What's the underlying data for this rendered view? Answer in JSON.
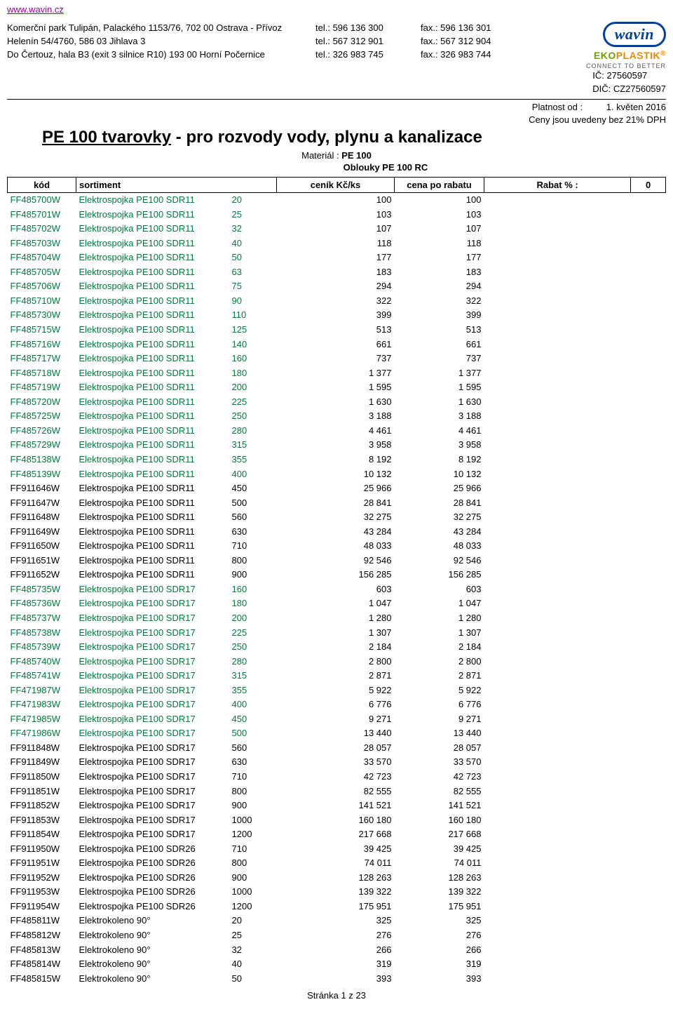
{
  "site_url": "www.wavin.cz",
  "addresses": [
    "Komerční park Tulipán, Palackého 1153/76, 702 00 Ostrava - Přívoz",
    "Helenín 54/4760, 586 03 Jihlava 3",
    "Do Čertouz, hala B3 (exit 3 silnice R10) 193 00  Horní Počernice"
  ],
  "tel_lines": [
    "tel.: 596 136 300",
    "tel.: 567 312 901",
    "tel.: 326 983 745"
  ],
  "fax_lines": [
    "fax.: 596 136 301",
    "fax.: 567 312 904",
    "fax.: 326 983 744"
  ],
  "ic": "IČ: 27560597",
  "dic": "DIČ: CZ27560597",
  "platnost_label": "Platnost od :",
  "platnost_value": "1. květen 2016",
  "vat_note": "Ceny jsou uvedeny bez 21% DPH",
  "logo_text": "wavin",
  "eko_text_1": "EKO",
  "eko_text_2": "PLASTIK",
  "eko_reg": "®",
  "ctb_text": "CONNECT TO BETTER",
  "title_underlined": "PE 100 tvarovky",
  "title_rest": " - pro rozvody vody, plynu a kanalizace",
  "material_label": "Materiál : ",
  "material_value": "PE 100",
  "section": "Oblouky PE 100 RC",
  "headers": {
    "kod": "kód",
    "sortiment": "sortiment",
    "cenik": "ceník Kč/ks",
    "rabat_price": "cena po rabatu",
    "rabat_label": "Rabat % :",
    "rabat_value": "0"
  },
  "rows": [
    {
      "kod": "FF485700W",
      "sort": "Elektrospojka PE100 SDR11",
      "dim": "20",
      "p1": "100",
      "p2": "100",
      "c": "g"
    },
    {
      "kod": "FF485701W",
      "sort": "Elektrospojka PE100 SDR11",
      "dim": "25",
      "p1": "103",
      "p2": "103",
      "c": "g"
    },
    {
      "kod": "FF485702W",
      "sort": "Elektrospojka PE100 SDR11",
      "dim": "32",
      "p1": "107",
      "p2": "107",
      "c": "g"
    },
    {
      "kod": "FF485703W",
      "sort": "Elektrospojka PE100 SDR11",
      "dim": "40",
      "p1": "118",
      "p2": "118",
      "c": "g"
    },
    {
      "kod": "FF485704W",
      "sort": "Elektrospojka PE100 SDR11",
      "dim": "50",
      "p1": "177",
      "p2": "177",
      "c": "g"
    },
    {
      "kod": "FF485705W",
      "sort": "Elektrospojka PE100 SDR11",
      "dim": "63",
      "p1": "183",
      "p2": "183",
      "c": "g"
    },
    {
      "kod": "FF485706W",
      "sort": "Elektrospojka PE100 SDR11",
      "dim": "75",
      "p1": "294",
      "p2": "294",
      "c": "g"
    },
    {
      "kod": "FF485710W",
      "sort": "Elektrospojka PE100 SDR11",
      "dim": "90",
      "p1": "322",
      "p2": "322",
      "c": "g"
    },
    {
      "kod": "FF485730W",
      "sort": "Elektrospojka PE100 SDR11",
      "dim": "110",
      "p1": "399",
      "p2": "399",
      "c": "g"
    },
    {
      "kod": "FF485715W",
      "sort": "Elektrospojka PE100 SDR11",
      "dim": "125",
      "p1": "513",
      "p2": "513",
      "c": "g"
    },
    {
      "kod": "FF485716W",
      "sort": "Elektrospojka PE100 SDR11",
      "dim": "140",
      "p1": "661",
      "p2": "661",
      "c": "g"
    },
    {
      "kod": "FF485717W",
      "sort": "Elektrospojka PE100 SDR11",
      "dim": "160",
      "p1": "737",
      "p2": "737",
      "c": "g"
    },
    {
      "kod": "FF485718W",
      "sort": "Elektrospojka PE100 SDR11",
      "dim": "180",
      "p1": "1 377",
      "p2": "1 377",
      "c": "g"
    },
    {
      "kod": "FF485719W",
      "sort": "Elektrospojka PE100 SDR11",
      "dim": "200",
      "p1": "1 595",
      "p2": "1 595",
      "c": "g"
    },
    {
      "kod": "FF485720W",
      "sort": "Elektrospojka PE100 SDR11",
      "dim": "225",
      "p1": "1 630",
      "p2": "1 630",
      "c": "g"
    },
    {
      "kod": "FF485725W",
      "sort": "Elektrospojka PE100 SDR11",
      "dim": "250",
      "p1": "3 188",
      "p2": "3 188",
      "c": "g"
    },
    {
      "kod": "FF485726W",
      "sort": "Elektrospojka PE100 SDR11",
      "dim": "280",
      "p1": "4 461",
      "p2": "4 461",
      "c": "g"
    },
    {
      "kod": "FF485729W",
      "sort": "Elektrospojka PE100 SDR11",
      "dim": "315",
      "p1": "3 958",
      "p2": "3 958",
      "c": "g"
    },
    {
      "kod": "FF485138W",
      "sort": "Elektrospojka PE100 SDR11",
      "dim": "355",
      "p1": "8 192",
      "p2": "8 192",
      "c": "g"
    },
    {
      "kod": "FF485139W",
      "sort": "Elektrospojka PE100 SDR11",
      "dim": "400",
      "p1": "10 132",
      "p2": "10 132",
      "c": "g"
    },
    {
      "kod": "FF911646W",
      "sort": "Elektrospojka PE100 SDR11",
      "dim": "450",
      "p1": "25 966",
      "p2": "25 966",
      "c": "b"
    },
    {
      "kod": "FF911647W",
      "sort": "Elektrospojka PE100 SDR11",
      "dim": "500",
      "p1": "28 841",
      "p2": "28 841",
      "c": "b"
    },
    {
      "kod": "FF911648W",
      "sort": "Elektrospojka PE100 SDR11",
      "dim": "560",
      "p1": "32 275",
      "p2": "32 275",
      "c": "b"
    },
    {
      "kod": "FF911649W",
      "sort": "Elektrospojka PE100 SDR11",
      "dim": "630",
      "p1": "43 284",
      "p2": "43 284",
      "c": "b"
    },
    {
      "kod": "FF911650W",
      "sort": "Elektrospojka PE100 SDR11",
      "dim": "710",
      "p1": "48 033",
      "p2": "48 033",
      "c": "b"
    },
    {
      "kod": "FF911651W",
      "sort": "Elektrospojka PE100 SDR11",
      "dim": "800",
      "p1": "92 546",
      "p2": "92 546",
      "c": "b"
    },
    {
      "kod": "FF911652W",
      "sort": "Elektrospojka PE100 SDR11",
      "dim": "900",
      "p1": "156 285",
      "p2": "156 285",
      "c": "b"
    },
    {
      "kod": "FF485735W",
      "sort": "Elektrospojka PE100 SDR17",
      "dim": "160",
      "p1": "603",
      "p2": "603",
      "c": "g"
    },
    {
      "kod": "FF485736W",
      "sort": "Elektrospojka PE100 SDR17",
      "dim": "180",
      "p1": "1 047",
      "p2": "1 047",
      "c": "g"
    },
    {
      "kod": "FF485737W",
      "sort": "Elektrospojka PE100 SDR17",
      "dim": "200",
      "p1": "1 280",
      "p2": "1 280",
      "c": "g"
    },
    {
      "kod": "FF485738W",
      "sort": "Elektrospojka PE100 SDR17",
      "dim": "225",
      "p1": "1 307",
      "p2": "1 307",
      "c": "g"
    },
    {
      "kod": "FF485739W",
      "sort": "Elektrospojka PE100 SDR17",
      "dim": "250",
      "p1": "2 184",
      "p2": "2 184",
      "c": "g"
    },
    {
      "kod": "FF485740W",
      "sort": "Elektrospojka PE100 SDR17",
      "dim": "280",
      "p1": "2 800",
      "p2": "2 800",
      "c": "g"
    },
    {
      "kod": "FF485741W",
      "sort": "Elektrospojka PE100 SDR17",
      "dim": "315",
      "p1": "2 871",
      "p2": "2 871",
      "c": "g"
    },
    {
      "kod": "FF471987W",
      "sort": "Elektrospojka PE100 SDR17",
      "dim": "355",
      "p1": "5 922",
      "p2": "5 922",
      "c": "g"
    },
    {
      "kod": "FF471983W",
      "sort": "Elektrospojka PE100 SDR17",
      "dim": "400",
      "p1": "6 776",
      "p2": "6 776",
      "c": "g"
    },
    {
      "kod": "FF471985W",
      "sort": "Elektrospojka PE100 SDR17",
      "dim": "450",
      "p1": "9 271",
      "p2": "9 271",
      "c": "g"
    },
    {
      "kod": "FF471986W",
      "sort": "Elektrospojka PE100 SDR17",
      "dim": "500",
      "p1": "13 440",
      "p2": "13 440",
      "c": "g"
    },
    {
      "kod": "FF911848W",
      "sort": "Elektrospojka PE100 SDR17",
      "dim": "560",
      "p1": "28 057",
      "p2": "28 057",
      "c": "b"
    },
    {
      "kod": "FF911849W",
      "sort": "Elektrospojka PE100 SDR17",
      "dim": "630",
      "p1": "33 570",
      "p2": "33 570",
      "c": "b"
    },
    {
      "kod": "FF911850W",
      "sort": "Elektrospojka PE100 SDR17",
      "dim": "710",
      "p1": "42 723",
      "p2": "42 723",
      "c": "b"
    },
    {
      "kod": "FF911851W",
      "sort": "Elektrospojka PE100 SDR17",
      "dim": "800",
      "p1": "82 555",
      "p2": "82 555",
      "c": "b"
    },
    {
      "kod": "FF911852W",
      "sort": "Elektrospojka PE100 SDR17",
      "dim": "900",
      "p1": "141 521",
      "p2": "141 521",
      "c": "b"
    },
    {
      "kod": "FF911853W",
      "sort": "Elektrospojka PE100 SDR17",
      "dim": "1000",
      "p1": "160 180",
      "p2": "160 180",
      "c": "b"
    },
    {
      "kod": "FF911854W",
      "sort": "Elektrospojka PE100 SDR17",
      "dim": "1200",
      "p1": "217 668",
      "p2": "217 668",
      "c": "b"
    },
    {
      "kod": "FF911950W",
      "sort": "Elektrospojka PE100 SDR26",
      "dim": "710",
      "p1": "39 425",
      "p2": "39 425",
      "c": "b"
    },
    {
      "kod": "FF911951W",
      "sort": "Elektrospojka PE100 SDR26",
      "dim": "800",
      "p1": "74 011",
      "p2": "74 011",
      "c": "b"
    },
    {
      "kod": "FF911952W",
      "sort": "Elektrospojka PE100 SDR26",
      "dim": "900",
      "p1": "128 263",
      "p2": "128 263",
      "c": "b"
    },
    {
      "kod": "FF911953W",
      "sort": "Elektrospojka PE100 SDR26",
      "dim": "1000",
      "p1": "139 322",
      "p2": "139 322",
      "c": "b"
    },
    {
      "kod": "FF911954W",
      "sort": "Elektrospojka PE100 SDR26",
      "dim": "1200",
      "p1": "175 951",
      "p2": "175 951",
      "c": "b"
    },
    {
      "kod": "FF485811W",
      "sort": "Elektrokoleno 90°",
      "dim": "20",
      "p1": "325",
      "p2": "325",
      "c": "b"
    },
    {
      "kod": "FF485812W",
      "sort": "Elektrokoleno 90°",
      "dim": "25",
      "p1": "276",
      "p2": "276",
      "c": "b"
    },
    {
      "kod": "FF485813W",
      "sort": "Elektrokoleno 90°",
      "dim": "32",
      "p1": "266",
      "p2": "266",
      "c": "b"
    },
    {
      "kod": "FF485814W",
      "sort": "Elektrokoleno 90°",
      "dim": "40",
      "p1": "319",
      "p2": "319",
      "c": "b"
    },
    {
      "kod": "FF485815W",
      "sort": "Elektrokoleno 90°",
      "dim": "50",
      "p1": "393",
      "p2": "393",
      "c": "b"
    }
  ],
  "footer": "Stránka 1 z 23"
}
